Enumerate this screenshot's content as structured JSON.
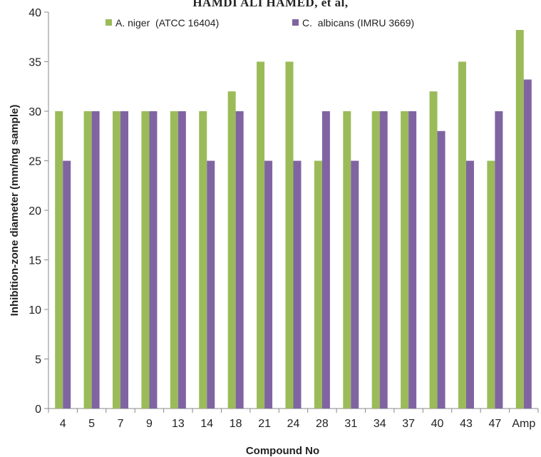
{
  "page_header": "HAMDI ALI HAMED, et al,",
  "chart_data": {
    "type": "bar",
    "categories": [
      "4",
      "5",
      "7",
      "9",
      "13",
      "14",
      "18",
      "21",
      "24",
      "28",
      "31",
      "34",
      "37",
      "40",
      "43",
      "47",
      "Amp"
    ],
    "series": [
      {
        "name": "A. niger  (ATCC 16404)",
        "color": "#9bbb59",
        "values": [
          30,
          30,
          30,
          30,
          30,
          30,
          32,
          35,
          35,
          25,
          30,
          30,
          30,
          32,
          35,
          25,
          38.2
        ]
      },
      {
        "name": "C.  albicans (IMRU 3669)",
        "color": "#8064a2",
        "values": [
          25,
          30,
          30,
          30,
          30,
          25,
          30,
          25,
          25,
          30,
          25,
          30,
          30,
          28,
          25,
          30,
          33.2
        ]
      }
    ],
    "xlabel": "Compound No",
    "ylabel": "Inhibition-zone diameter (mm/mg sample)",
    "ylim": [
      0,
      40
    ],
    "yticks": [
      0,
      5,
      10,
      15,
      20,
      25,
      30,
      35,
      40
    ],
    "grid": false,
    "legend_position": "top"
  }
}
